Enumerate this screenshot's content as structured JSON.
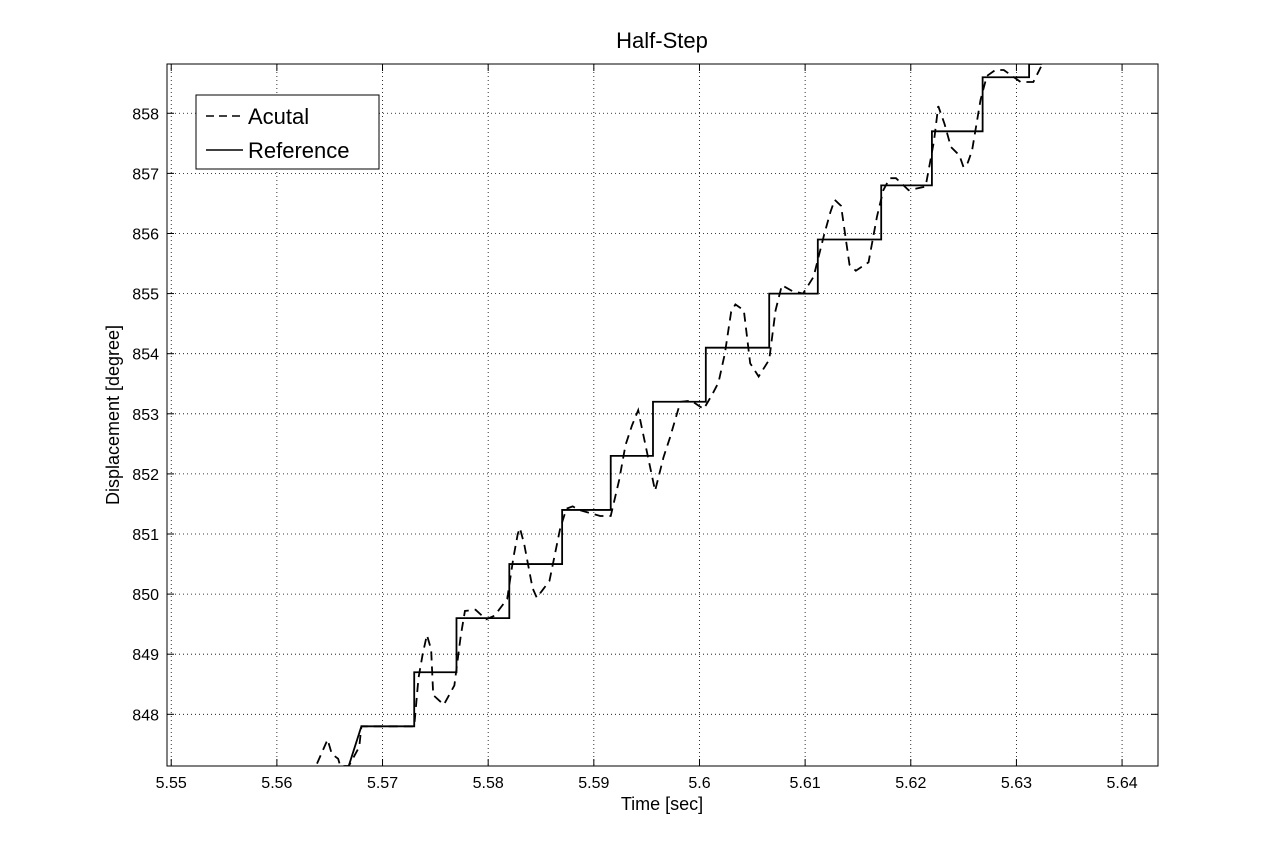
{
  "chart_data": {
    "type": "line",
    "title": "Half-Step",
    "xlabel": "Time [sec]",
    "ylabel": "Displacement [degree]",
    "xlim": [
      5.5496,
      5.6434
    ],
    "ylim": [
      847.14,
      858.82
    ],
    "grid": true,
    "legend_position": "top-left",
    "x_ticks": [
      5.55,
      5.56,
      5.57,
      5.58,
      5.59,
      5.6,
      5.61,
      5.62,
      5.63,
      5.64
    ],
    "x_tick_labels": [
      "5.55",
      "5.56",
      "5.57",
      "5.58",
      "5.59",
      "5.6",
      "5.61",
      "5.62",
      "5.63",
      "5.64"
    ],
    "y_ticks": [
      848,
      849,
      850,
      851,
      852,
      853,
      854,
      855,
      856,
      857,
      858
    ],
    "y_tick_labels": [
      "848",
      "849",
      "850",
      "851",
      "852",
      "853",
      "854",
      "855",
      "856",
      "857",
      "858"
    ],
    "series": [
      {
        "name": "Acutal",
        "style": "dashed",
        "color": "#000000",
        "x": [
          5.5638,
          5.5648,
          5.5652,
          5.5658,
          5.566,
          5.5668,
          5.567,
          5.5678,
          5.568,
          5.573,
          5.5734,
          5.5738,
          5.5742,
          5.5746,
          5.5748,
          5.5758,
          5.5768,
          5.5774,
          5.5778,
          5.5788,
          5.5798,
          5.5806,
          5.5818,
          5.5824,
          5.5828,
          5.583,
          5.5834,
          5.5842,
          5.5846,
          5.5852,
          5.5858,
          5.5868,
          5.5874,
          5.588,
          5.5886,
          5.5906,
          5.5916,
          5.5924,
          5.593,
          5.5936,
          5.5942,
          5.5946,
          5.5958,
          5.5966,
          5.5972,
          5.5982,
          5.5992,
          5.6004,
          5.6012,
          5.6018,
          5.6024,
          5.603,
          5.6034,
          5.6042,
          5.6048,
          5.6056,
          5.6066,
          5.6072,
          5.6078,
          5.6088,
          5.6098,
          5.6108,
          5.6118,
          5.6124,
          5.6128,
          5.6134,
          5.6142,
          5.6148,
          5.616,
          5.6168,
          5.6174,
          5.618,
          5.6186,
          5.6198,
          5.6214,
          5.6222,
          5.6226,
          5.6232,
          5.6238,
          5.6246,
          5.625,
          5.6254,
          5.6258,
          5.6266,
          5.6272,
          5.628,
          5.6288,
          5.6304,
          5.6316,
          5.6324
        ],
        "y": [
          847.18,
          847.58,
          847.34,
          847.26,
          847.14,
          847.14,
          847.2,
          847.46,
          847.8,
          847.8,
          848.6,
          849.0,
          849.32,
          849.08,
          848.32,
          848.16,
          848.48,
          849.3,
          849.72,
          849.74,
          849.58,
          849.64,
          849.92,
          850.62,
          851.0,
          851.1,
          850.84,
          850.1,
          849.94,
          850.08,
          850.22,
          851.08,
          851.42,
          851.46,
          851.4,
          851.3,
          851.3,
          851.9,
          852.48,
          852.8,
          853.06,
          852.72,
          851.72,
          852.28,
          852.6,
          853.2,
          853.22,
          853.08,
          853.32,
          853.52,
          854.0,
          854.7,
          854.82,
          854.72,
          853.84,
          853.62,
          853.9,
          854.72,
          855.14,
          855.04,
          855.0,
          855.28,
          855.98,
          856.36,
          856.56,
          856.46,
          855.48,
          855.38,
          855.52,
          856.28,
          856.72,
          856.92,
          856.92,
          856.72,
          856.78,
          857.54,
          858.12,
          857.82,
          857.44,
          857.3,
          857.1,
          857.18,
          857.38,
          858.22,
          858.62,
          858.72,
          858.72,
          858.52,
          858.52,
          858.8
        ]
      },
      {
        "name": "Reference",
        "style": "solid",
        "color": "#000000",
        "x": [
          5.5668,
          5.568,
          5.568,
          5.573,
          5.573,
          5.577,
          5.577,
          5.582,
          5.582,
          5.587,
          5.587,
          5.5916,
          5.5916,
          5.5956,
          5.5956,
          5.6006,
          5.6006,
          5.6066,
          5.6066,
          5.6112,
          5.6112,
          5.6172,
          5.6172,
          5.622,
          5.622,
          5.6268,
          5.6268,
          5.6312,
          5.6312,
          5.6324
        ],
        "y": [
          847.14,
          847.8,
          847.8,
          847.8,
          848.7,
          848.7,
          849.6,
          849.6,
          850.5,
          850.5,
          851.4,
          851.4,
          852.3,
          852.3,
          853.2,
          853.2,
          854.1,
          854.1,
          855.0,
          855.0,
          855.9,
          855.9,
          856.8,
          856.8,
          857.7,
          857.7,
          858.6,
          858.6,
          858.82,
          858.82
        ]
      }
    ]
  }
}
